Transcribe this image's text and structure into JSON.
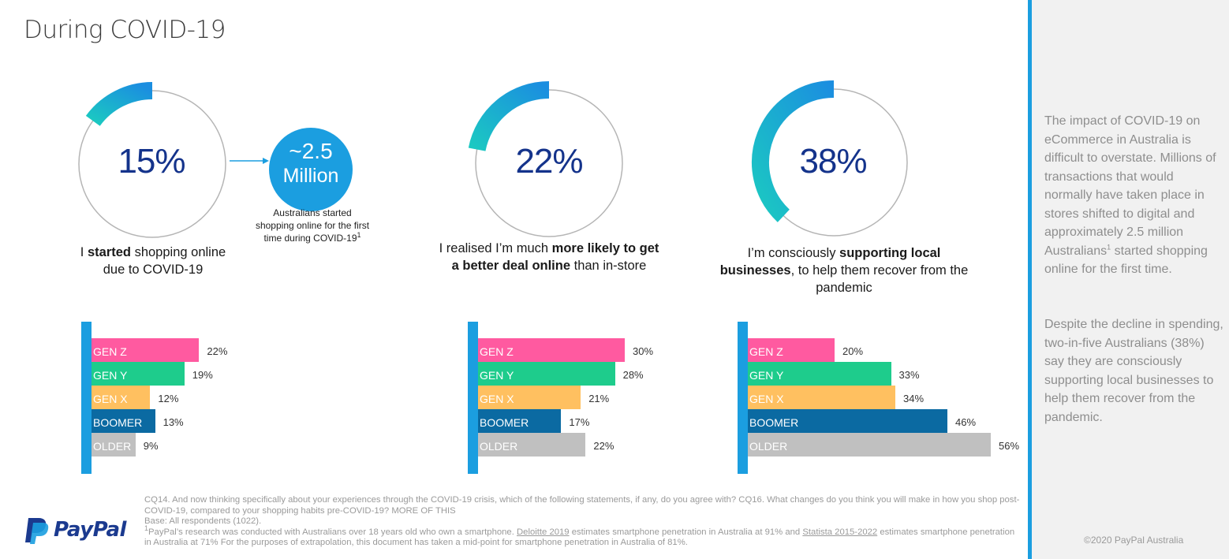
{
  "page": {
    "title": "During COVID-19"
  },
  "colors": {
    "blue_accent": "#1b9ee0",
    "navy": "#14338b",
    "gen_z": "#ff5aa0",
    "gen_y": "#1ecc8c",
    "gen_x": "#ffc060",
    "boomer": "#0b6aa2",
    "older": "#c0c0c0"
  },
  "stat_1": {
    "value": "15%",
    "fraction": 0.15,
    "statement_pre": "I ",
    "statement_bold": "started",
    "statement_post": " shopping online due to COVID-19",
    "million_line1": "~2.5",
    "million_line2": "Million",
    "million_caption": "Australians started shopping online for the first time during COVID-19",
    "million_caption_sup": "1"
  },
  "stat_2": {
    "value": "22%",
    "fraction": 0.22,
    "statement_pre": "I realised I’m much ",
    "statement_bold": "more likely to get a better deal online",
    "statement_post": " than in-store"
  },
  "stat_3": {
    "value": "38%",
    "fraction": 0.38,
    "statement_pre": "I’m consciously ",
    "statement_bold": "supporting local businesses",
    "statement_post": ", to help them recover from the pandemic"
  },
  "chart_data": [
    {
      "type": "bar",
      "orientation": "horizontal",
      "categories": [
        "GEN Z",
        "GEN Y",
        "GEN X",
        "BOOMER",
        "OLDER"
      ],
      "values": [
        22,
        19,
        12,
        13,
        9
      ],
      "value_labels": [
        "22%",
        "19%",
        "12%",
        "13%",
        "9%"
      ]
    },
    {
      "type": "bar",
      "orientation": "horizontal",
      "categories": [
        "GEN Z",
        "GEN Y",
        "GEN X",
        "BOOMER",
        "OLDER"
      ],
      "values": [
        30,
        28,
        21,
        17,
        22
      ],
      "value_labels": [
        "30%",
        "28%",
        "21%",
        "17%",
        "22%"
      ]
    },
    {
      "type": "bar",
      "orientation": "horizontal",
      "categories": [
        "GEN Z",
        "GEN Y",
        "GEN X",
        "BOOMER",
        "OLDER"
      ],
      "values": [
        20,
        33,
        34,
        46,
        56
      ],
      "value_labels": [
        "20%",
        "33%",
        "34%",
        "46%",
        "56%"
      ]
    }
  ],
  "footnote": {
    "line1": "CQ14. And now thinking specifically about your experiences through the COVID-19 crisis, which of the following statements, if any, do you agree with? CQ16. What changes do you think you will make in how you shop post-COVID-19, compared to your shopping habits pre-COVID-19? MORE OF THIS",
    "line2": "Base: All respondents (1022).",
    "line3_sup": "1",
    "line3_a": "PayPal’s research was conducted with Australians over 18 years old who own a smartphone. ",
    "line3_link1": "Deloitte 2019",
    "line3_b": " estimates smartphone penetration in Australia at 91% and ",
    "line3_link2": "Statista 2015-2022",
    "line3_c": " estimates smartphone penetration in Australia at 71% For the purposes of extrapolation, this document has taken a mid-point for smartphone penetration in Australia of 81%."
  },
  "logo": {
    "word": "PayPal"
  },
  "sidebar": {
    "para1_a": "The impact of COVID-19 on eCommerce in Australia is difficult to overstate. Millions of transactions that would normally have taken place in stores shifted to digital and approximately 2.5 million Australians",
    "para1_sup": "1",
    "para1_b": " started shopping online for the first time.",
    "para2": "Despite the decline in spending, two-in-five Australians (38%) say they are consciously supporting local businesses to help them recover from the pandemic.",
    "copyright": "©2020 PayPal Australia"
  }
}
